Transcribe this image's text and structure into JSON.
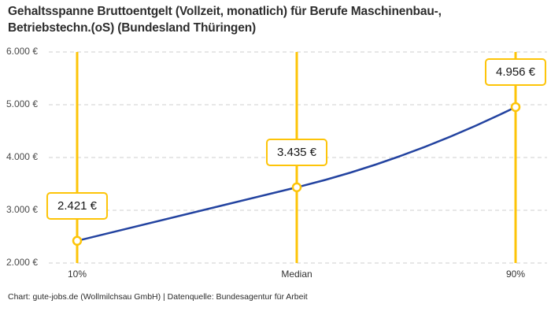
{
  "title": {
    "line1": "Gehaltsspanne Bruttoentgelt (Vollzeit, monatlich) für Berufe Maschinenbau-,",
    "line2": "Betriebstechn.(oS) (Bundesland Thüringen)"
  },
  "footer": "Chart: gute-jobs.de (Wollmilchsau GmbH) | Datenquelle: Bundesagentur für Arbeit",
  "chart_data": {
    "type": "line",
    "title": "Gehaltsspanne Bruttoentgelt (Vollzeit, monatlich) für Berufe Maschinenbau-, Betriebstechn.(oS) (Bundesland Thüringen)",
    "categories": [
      "10%",
      "Median",
      "90%"
    ],
    "values": [
      2421,
      3435,
      4956
    ],
    "points": [
      {
        "label": "10%",
        "value": 2421,
        "display": "2.421 €"
      },
      {
        "label": "Median",
        "value": 3435,
        "display": "3.435 €"
      },
      {
        "label": "90%",
        "value": 4956,
        "display": "4.956 €"
      }
    ],
    "xlabel": "",
    "ylabel": "",
    "ylim": [
      2000,
      6000
    ],
    "yticks": [
      {
        "value": 6000,
        "label": "6.000 €"
      },
      {
        "value": 5000,
        "label": "5.000 €"
      },
      {
        "value": 4000,
        "label": "4.000 €"
      },
      {
        "value": 3000,
        "label": "3.000 €"
      },
      {
        "value": 2000,
        "label": "2.000 €"
      }
    ],
    "grid": "horizontal-dashed",
    "legend": "none",
    "colors": {
      "line": "#2343a0",
      "accent": "#fdc408",
      "marker_fill": "#ffffff",
      "grid": "#cfcfcf"
    }
  }
}
